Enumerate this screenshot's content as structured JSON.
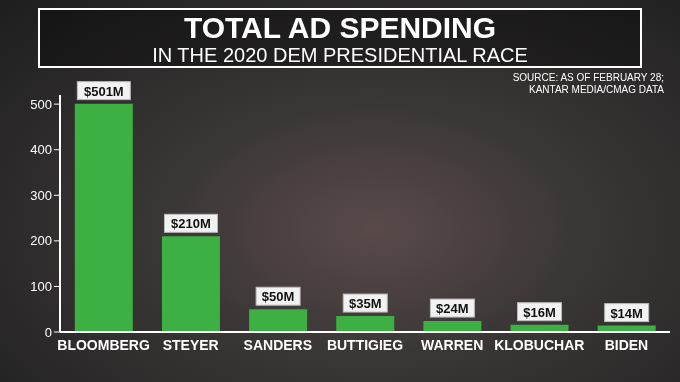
{
  "chart_data": {
    "type": "bar",
    "title": "TOTAL AD SPENDING",
    "subtitle": "IN THE 2020 DEM PRESIDENTIAL RACE",
    "annotations": [
      "SOURCE: AS OF FEBRUARY 28;",
      "KANTAR MEDIA/CMAG DATA"
    ],
    "categories": [
      "BLOOMBERG",
      "STEYER",
      "SANDERS",
      "BUTTIGIEG",
      "WARREN",
      "KLOBUCHAR",
      "BIDEN"
    ],
    "values": [
      501,
      210,
      50,
      35,
      24,
      16,
      14
    ],
    "value_labels": [
      "$501M",
      "$210M",
      "$50M",
      "$35M",
      "$24M",
      "$16M",
      "$14M"
    ],
    "color": "#3cb043",
    "ylim": [
      0,
      520
    ],
    "yticks": [
      0,
      100,
      200,
      300,
      400,
      500
    ],
    "grid": false,
    "data_labels": true
  }
}
